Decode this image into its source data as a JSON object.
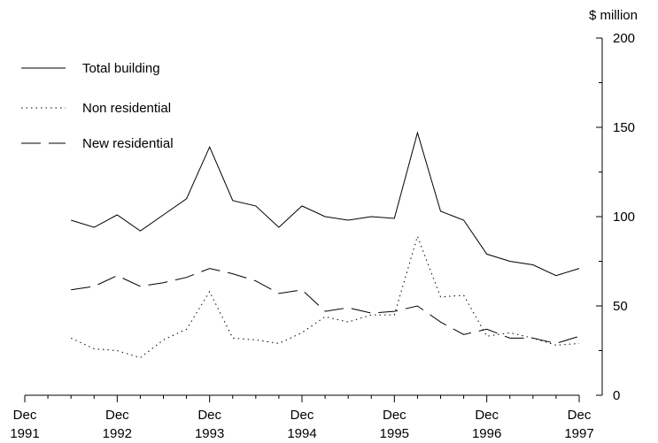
{
  "chart_data": {
    "type": "line",
    "unit_label": "$ million",
    "y_ticks": [
      "0",
      "50",
      "100",
      "150",
      "200"
    ],
    "ylim": [
      0,
      200
    ],
    "x_ticks": [
      {
        "month": "Dec",
        "year": "1991"
      },
      {
        "month": "Dec",
        "year": "1992"
      },
      {
        "month": "Dec",
        "year": "1993"
      },
      {
        "month": "Dec",
        "year": "1994"
      },
      {
        "month": "Dec",
        "year": "1995"
      },
      {
        "month": "Dec",
        "year": "1996"
      },
      {
        "month": "Dec",
        "year": "1997"
      }
    ],
    "x": [
      "Jun-1992",
      "Sep-1992",
      "Dec-1992",
      "Mar-1993",
      "Jun-1993",
      "Sep-1993",
      "Dec-1993",
      "Mar-1994",
      "Jun-1994",
      "Sep-1994",
      "Dec-1994",
      "Mar-1995",
      "Jun-1995",
      "Sep-1995",
      "Dec-1995",
      "Mar-1996",
      "Jun-1996",
      "Sep-1996",
      "Dec-1996",
      "Mar-1997",
      "Jun-1997",
      "Sep-1997",
      "Dec-1997"
    ],
    "grid": false,
    "legend_position": "top-left",
    "series": [
      {
        "name": "Total building",
        "dash": "solid",
        "values": [
          98,
          94,
          101,
          92,
          101,
          110,
          139,
          109,
          106,
          94,
          106,
          100,
          98,
          100,
          99,
          147,
          103,
          98,
          79,
          75,
          73,
          67,
          71
        ]
      },
      {
        "name": "Non residential",
        "dash": "dotted",
        "values": [
          32,
          26,
          25,
          21,
          31,
          37,
          58,
          32,
          31,
          29,
          35,
          44,
          41,
          45,
          45,
          89,
          55,
          56,
          33,
          35,
          32,
          28,
          29
        ]
      },
      {
        "name": "New residential",
        "dash": "dashed",
        "values": [
          59,
          61,
          67,
          61,
          63,
          66,
          71,
          68,
          64,
          57,
          59,
          47,
          49,
          46,
          47,
          50,
          41,
          34,
          37,
          32,
          32,
          29,
          33
        ]
      }
    ]
  }
}
